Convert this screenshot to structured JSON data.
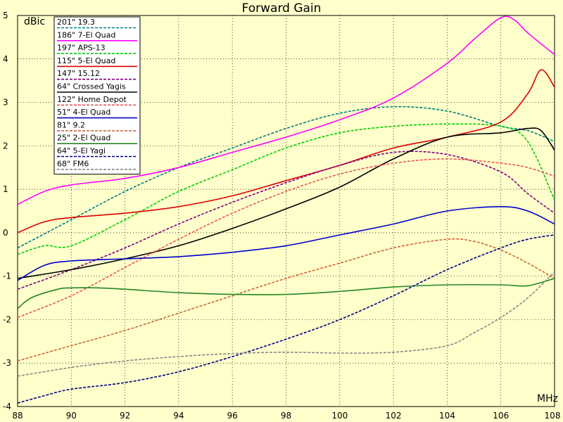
{
  "chart_data": {
    "type": "line",
    "title": "Forward Gain",
    "xlabel": "MHz",
    "ylabel": "dBic",
    "xlim": [
      88,
      108
    ],
    "ylim": [
      -4,
      5
    ],
    "xticks": [
      88,
      90,
      92,
      94,
      96,
      98,
      100,
      102,
      104,
      106,
      108
    ],
    "yticks": [
      -4,
      -3,
      -2,
      -1,
      0,
      1,
      2,
      3,
      4,
      5
    ],
    "xtick_labels": [
      "88",
      "90",
      "92",
      "94",
      "96",
      "98",
      "100",
      "102",
      "104",
      "106",
      "108"
    ],
    "ytick_labels": [
      "-4",
      "-3",
      "-2",
      "-1",
      "0",
      "1",
      "2",
      "3",
      "4",
      "5"
    ],
    "grid": true,
    "legend_position": "top-left",
    "series": [
      {
        "name": "201\"  19.3",
        "color": "#008080",
        "dash": true,
        "points": [
          [
            88,
            -0.35
          ],
          [
            90,
            0.3
          ],
          [
            92,
            0.95
          ],
          [
            94,
            1.5
          ],
          [
            96,
            1.95
          ],
          [
            98,
            2.4
          ],
          [
            100,
            2.75
          ],
          [
            102,
            2.9
          ],
          [
            104,
            2.8
          ],
          [
            106,
            2.45
          ],
          [
            107,
            2.35
          ],
          [
            108,
            2.1
          ]
        ]
      },
      {
        "name": "186\"  7-El Quad",
        "color": "#ff00ff",
        "dash": false,
        "points": [
          [
            88,
            0.65
          ],
          [
            89,
            0.95
          ],
          [
            90,
            1.1
          ],
          [
            92,
            1.25
          ],
          [
            94,
            1.5
          ],
          [
            96,
            1.85
          ],
          [
            98,
            2.2
          ],
          [
            100,
            2.6
          ],
          [
            102,
            3.1
          ],
          [
            104,
            3.9
          ],
          [
            105,
            4.45
          ],
          [
            106,
            4.95
          ],
          [
            106.5,
            4.9
          ],
          [
            107,
            4.6
          ],
          [
            108,
            4.1
          ]
        ]
      },
      {
        "name": "197\"  APS-13",
        "color": "#00cc00",
        "dash": true,
        "points": [
          [
            88,
            -0.5
          ],
          [
            89,
            -0.3
          ],
          [
            90,
            -0.3
          ],
          [
            92,
            0.3
          ],
          [
            94,
            0.95
          ],
          [
            96,
            1.45
          ],
          [
            98,
            1.95
          ],
          [
            100,
            2.3
          ],
          [
            102,
            2.45
          ],
          [
            104,
            2.5
          ],
          [
            106,
            2.45
          ],
          [
            107,
            2.1
          ],
          [
            108,
            0.75
          ]
        ]
      },
      {
        "name": "115\"  5-El Quad",
        "color": "#dd0000",
        "dash": false,
        "points": [
          [
            88,
            0
          ],
          [
            89,
            0.25
          ],
          [
            90,
            0.35
          ],
          [
            92,
            0.45
          ],
          [
            94,
            0.6
          ],
          [
            96,
            0.85
          ],
          [
            98,
            1.2
          ],
          [
            100,
            1.55
          ],
          [
            102,
            1.95
          ],
          [
            104,
            2.2
          ],
          [
            106,
            2.55
          ],
          [
            107,
            3.2
          ],
          [
            107.5,
            3.75
          ],
          [
            108,
            3.35
          ]
        ]
      },
      {
        "name": "147\"  15.12",
        "color": "#800080",
        "dash": true,
        "points": [
          [
            88,
            -1.3
          ],
          [
            90,
            -0.85
          ],
          [
            92,
            -0.35
          ],
          [
            94,
            0.2
          ],
          [
            96,
            0.7
          ],
          [
            98,
            1.15
          ],
          [
            100,
            1.55
          ],
          [
            102,
            1.85
          ],
          [
            104,
            1.8
          ],
          [
            106,
            1.4
          ],
          [
            107,
            0.9
          ],
          [
            108,
            0.45
          ]
        ]
      },
      {
        "name": "64\"    Crossed Yagis",
        "color": "#000000",
        "dash": false,
        "points": [
          [
            88,
            -1.05
          ],
          [
            90,
            -0.85
          ],
          [
            92,
            -0.6
          ],
          [
            94,
            -0.3
          ],
          [
            96,
            0.1
          ],
          [
            98,
            0.55
          ],
          [
            100,
            1.05
          ],
          [
            102,
            1.7
          ],
          [
            104,
            2.2
          ],
          [
            106,
            2.3
          ],
          [
            107,
            2.4
          ],
          [
            107.5,
            2.35
          ],
          [
            108,
            1.9
          ]
        ]
      },
      {
        "name": "122\"  Home Depot",
        "color": "#ee5555",
        "dash": true,
        "points": [
          [
            88,
            -1.95
          ],
          [
            90,
            -1.45
          ],
          [
            92,
            -0.8
          ],
          [
            94,
            -0.15
          ],
          [
            96,
            0.45
          ],
          [
            98,
            0.95
          ],
          [
            100,
            1.35
          ],
          [
            102,
            1.6
          ],
          [
            104,
            1.7
          ],
          [
            106,
            1.6
          ],
          [
            107,
            1.5
          ],
          [
            108,
            1.3
          ]
        ]
      },
      {
        "name": "51\"    4-El Quad",
        "color": "#0000cc",
        "dash": false,
        "points": [
          [
            88,
            -1.1
          ],
          [
            89,
            -0.75
          ],
          [
            90,
            -0.65
          ],
          [
            92,
            -0.6
          ],
          [
            94,
            -0.55
          ],
          [
            96,
            -0.45
          ],
          [
            98,
            -0.3
          ],
          [
            100,
            -0.05
          ],
          [
            102,
            0.2
          ],
          [
            104,
            0.5
          ],
          [
            106,
            0.6
          ],
          [
            107,
            0.5
          ],
          [
            108,
            0.2
          ]
        ]
      },
      {
        "name": "81\"    9.2",
        "color": "#cc6633",
        "dash": true,
        "points": [
          [
            88,
            -2.95
          ],
          [
            90,
            -2.6
          ],
          [
            92,
            -2.25
          ],
          [
            94,
            -1.85
          ],
          [
            96,
            -1.45
          ],
          [
            98,
            -1.05
          ],
          [
            100,
            -0.7
          ],
          [
            102,
            -0.35
          ],
          [
            104,
            -0.15
          ],
          [
            105,
            -0.2
          ],
          [
            106,
            -0.4
          ],
          [
            107,
            -0.7
          ],
          [
            108,
            -1.05
          ]
        ]
      },
      {
        "name": "25\"    2-El Quad",
        "color": "#228822",
        "dash": false,
        "points": [
          [
            88,
            -1.75
          ],
          [
            88.5,
            -1.5
          ],
          [
            89.5,
            -1.3
          ],
          [
            90,
            -1.27
          ],
          [
            91,
            -1.27
          ],
          [
            92,
            -1.3
          ],
          [
            94,
            -1.38
          ],
          [
            96,
            -1.42
          ],
          [
            98,
            -1.42
          ],
          [
            100,
            -1.35
          ],
          [
            102,
            -1.25
          ],
          [
            104,
            -1.2
          ],
          [
            106,
            -1.2
          ],
          [
            107,
            -1.22
          ],
          [
            108,
            -1.05
          ]
        ]
      },
      {
        "name": "64\"    5-El Yagi",
        "color": "#000080",
        "dash": true,
        "points": [
          [
            88,
            -3.92
          ],
          [
            89,
            -3.75
          ],
          [
            90,
            -3.6
          ],
          [
            92,
            -3.45
          ],
          [
            94,
            -3.2
          ],
          [
            96,
            -2.85
          ],
          [
            98,
            -2.45
          ],
          [
            100,
            -2
          ],
          [
            102,
            -1.45
          ],
          [
            104,
            -0.85
          ],
          [
            106,
            -0.35
          ],
          [
            107,
            -0.15
          ],
          [
            108,
            -0.05
          ]
        ]
      },
      {
        "name": "68\"    FM6",
        "color": "#888888",
        "dash": true,
        "points": [
          [
            88,
            -3.3
          ],
          [
            90,
            -3.1
          ],
          [
            92,
            -2.95
          ],
          [
            94,
            -2.85
          ],
          [
            96,
            -2.78
          ],
          [
            98,
            -2.75
          ],
          [
            100,
            -2.77
          ],
          [
            102,
            -2.75
          ],
          [
            104,
            -2.6
          ],
          [
            105,
            -2.3
          ],
          [
            106,
            -1.95
          ],
          [
            107,
            -1.5
          ],
          [
            108,
            -0.9
          ]
        ]
      }
    ]
  }
}
